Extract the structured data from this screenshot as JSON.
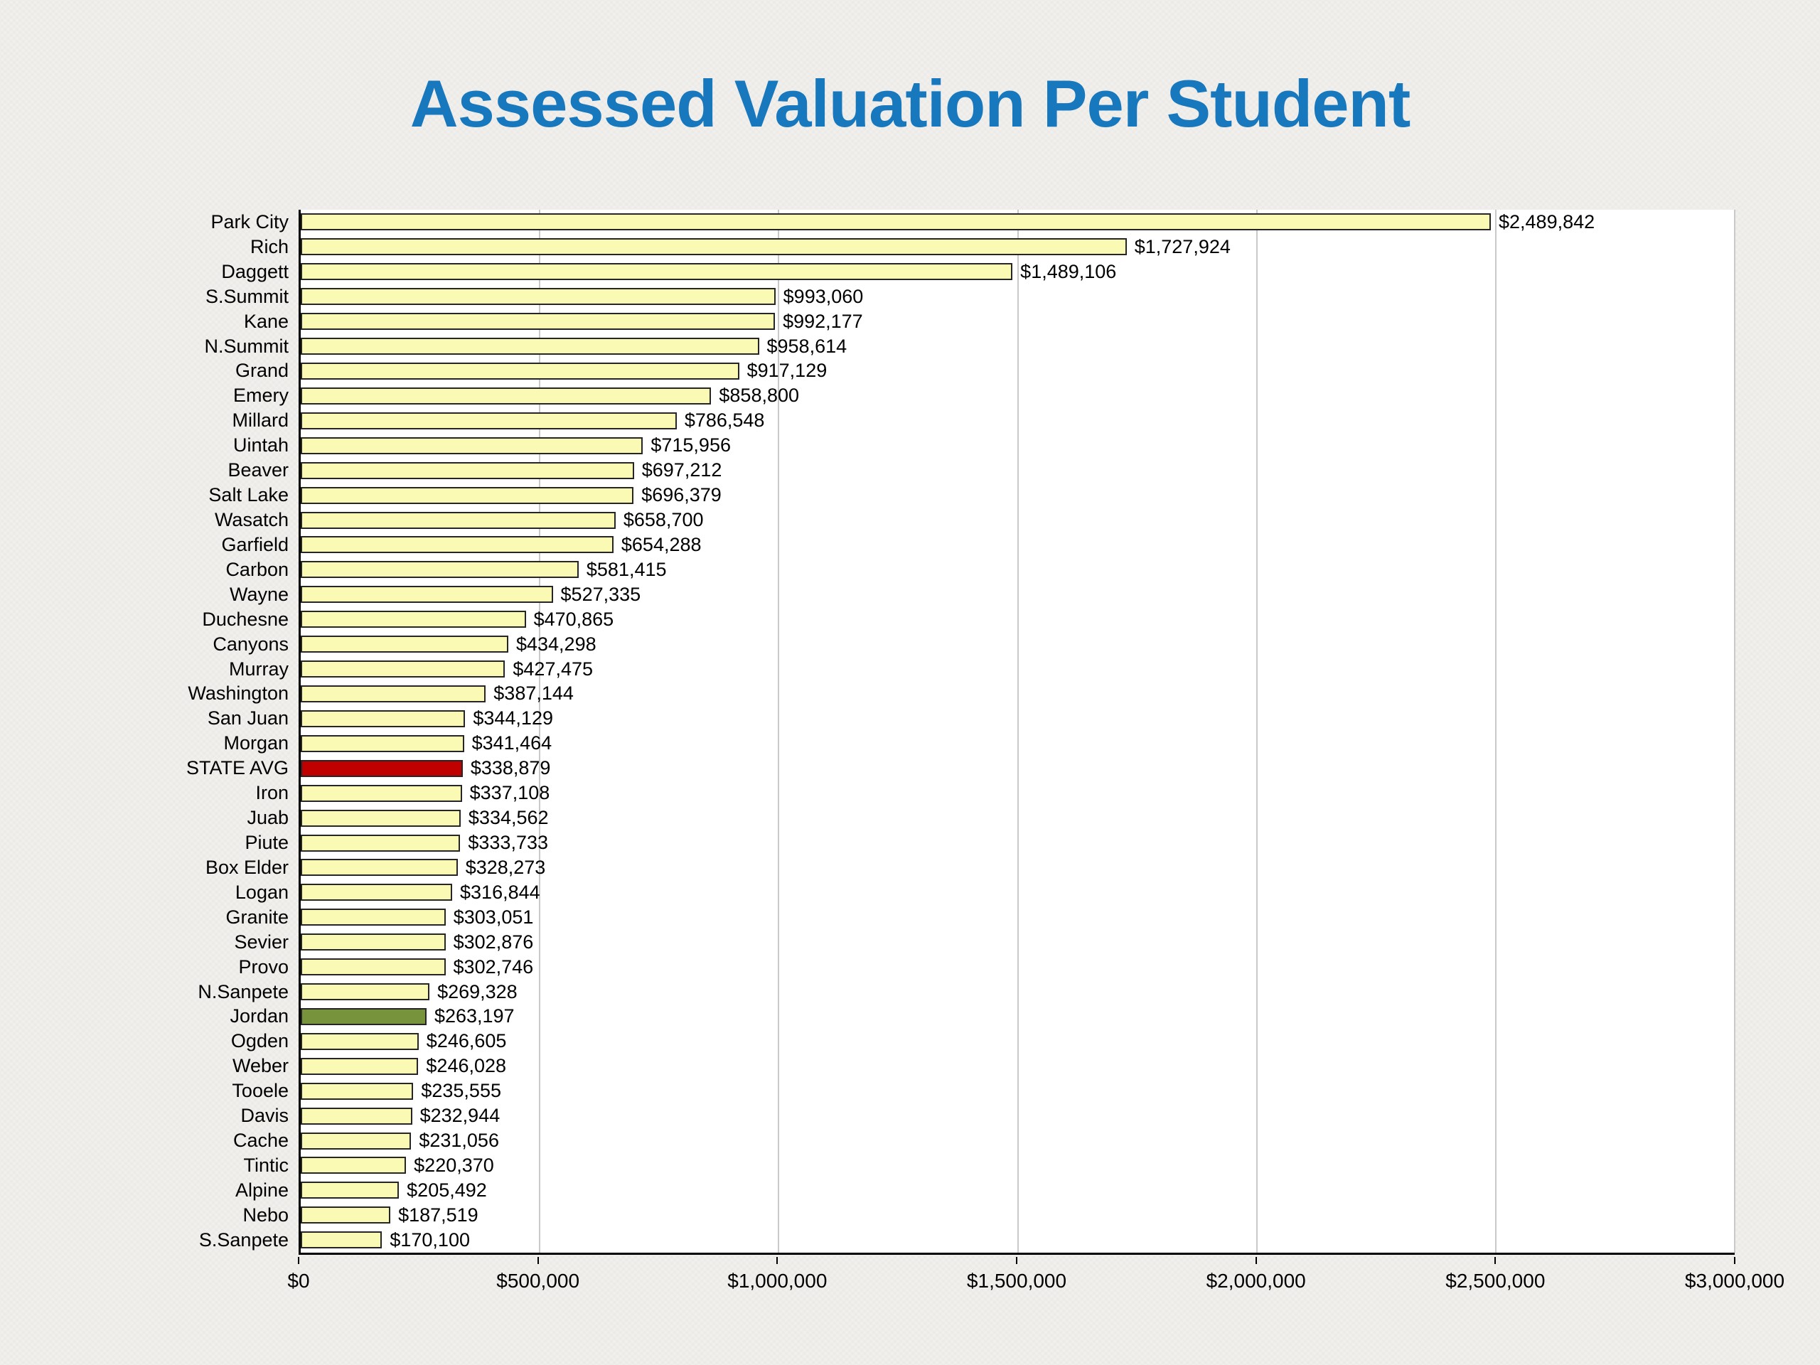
{
  "slide": {
    "background_color": "#f2f0ed"
  },
  "colors": {
    "title": "#1778be",
    "bar_default": "#fafab4",
    "bar_border": "#262626",
    "gridline": "#c9c9c9",
    "axis": "#000000",
    "state_avg_highlight": "#c00000",
    "jordan_highlight": "#77933c"
  },
  "chart_data": {
    "type": "bar",
    "orientation": "horizontal",
    "title": "Assessed Valuation Per Student",
    "xlim": [
      0,
      3000000
    ],
    "grid": true,
    "legend": "none",
    "x_ticks": [
      0,
      500000,
      1000000,
      1500000,
      2000000,
      2500000,
      3000000
    ],
    "x_tick_labels": [
      "$0",
      "$500,000",
      "$1,000,000",
      "$1,500,000",
      "$2,000,000",
      "$2,500,000",
      "$3,000,000"
    ],
    "categories": [
      "Park City",
      "Rich",
      "Daggett",
      "S.Summit",
      "Kane",
      "N.Summit",
      "Grand",
      "Emery",
      "Millard",
      "Uintah",
      "Beaver",
      "Salt Lake",
      "Wasatch",
      "Garfield",
      "Carbon",
      "Wayne",
      "Duchesne",
      "Canyons",
      "Murray",
      "Washington",
      "San Juan",
      "Morgan",
      "STATE AVG",
      "Iron",
      "Juab",
      "Piute",
      "Box Elder",
      "Logan",
      "Granite",
      "Sevier",
      "Provo",
      "N.Sanpete",
      "Jordan",
      "Ogden",
      "Weber",
      "Tooele",
      "Davis",
      "Cache",
      "Tintic",
      "Alpine",
      "Nebo",
      "S.Sanpete"
    ],
    "values": [
      2489842,
      1727924,
      1489106,
      993060,
      992177,
      958614,
      917129,
      858800,
      786548,
      715956,
      697212,
      696379,
      658700,
      654288,
      581415,
      527335,
      470865,
      434298,
      427475,
      387144,
      344129,
      341464,
      338879,
      337108,
      334562,
      333733,
      328273,
      316844,
      303051,
      302876,
      302746,
      269328,
      263197,
      246605,
      246028,
      235555,
      232944,
      231056,
      220370,
      205492,
      187519,
      170100
    ],
    "value_labels": [
      "$2,489,842",
      "$1,727,924",
      "$1,489,106",
      "$993,060",
      "$992,177",
      "$958,614",
      "$917,129",
      "$858,800",
      "$786,548",
      "$715,956",
      "$697,212",
      "$696,379",
      "$658,700",
      "$654,288",
      "$581,415",
      "$527,335",
      "$470,865",
      "$434,298",
      "$427,475",
      "$387,144",
      "$344,129",
      "$341,464",
      "$338,879",
      "$337,108",
      "$334,562",
      "$333,733",
      "$328,273",
      "$316,844",
      "$303,051",
      "$302,876",
      "$302,746",
      "$269,328",
      "$263,197",
      "$246,605",
      "$246,028",
      "$235,555",
      "$232,944",
      "$231,056",
      "$220,370",
      "$205,492",
      "$187,519",
      "$170,100"
    ],
    "highlights": {
      "STATE AVG": "#c00000",
      "Jordan": "#77933c"
    }
  }
}
